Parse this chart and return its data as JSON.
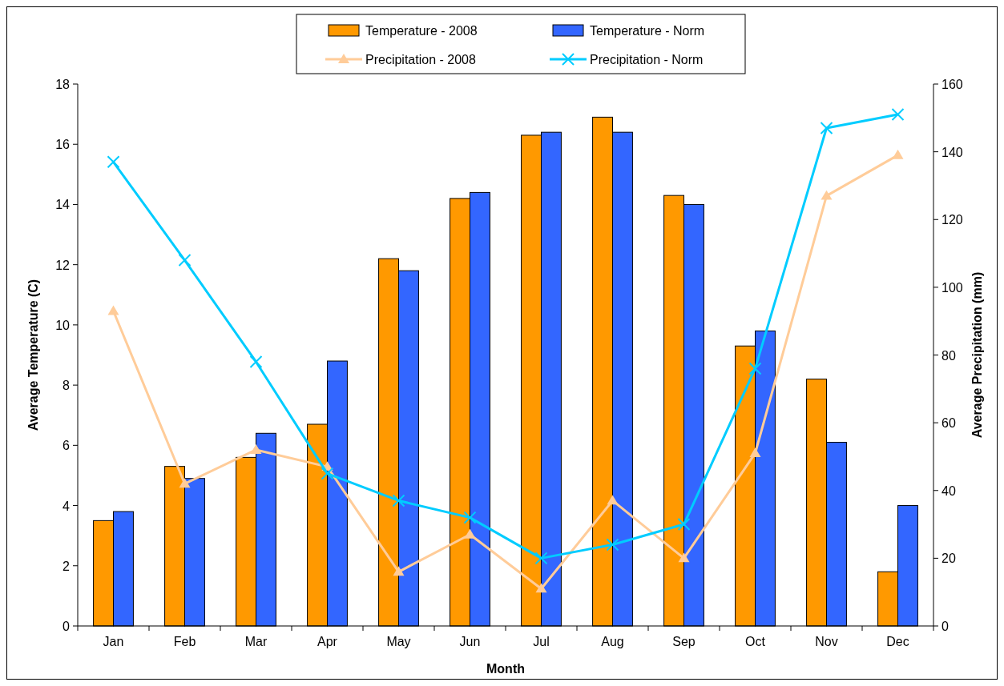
{
  "chart_data": {
    "type": "bar",
    "xlabel": "Month",
    "ylabel": "Average Temperature (C)",
    "y2label": "Average Precipitation (mm)",
    "categories": [
      "Jan",
      "Feb",
      "Mar",
      "Apr",
      "May",
      "Jun",
      "Jul",
      "Aug",
      "Sep",
      "Oct",
      "Nov",
      "Dec"
    ],
    "series": [
      {
        "name": "Temperature - 2008",
        "color": "#ff9900",
        "values": [
          3.5,
          5.3,
          5.6,
          6.7,
          12.2,
          14.2,
          16.3,
          16.9,
          14.3,
          9.3,
          8.2,
          1.8
        ]
      },
      {
        "name": "Temperature - Norm",
        "color": "#3366ff",
        "values": [
          3.8,
          4.9,
          6.4,
          8.8,
          11.8,
          14.4,
          16.4,
          16.4,
          14.0,
          9.8,
          6.1,
          4.0
        ]
      },
      {
        "name": "Precipitation - 2008",
        "type": "line",
        "axis": "y2",
        "marker": "triangle",
        "color": "#ffcc99",
        "values": [
          93,
          42,
          52,
          47,
          16,
          27,
          11,
          37,
          20,
          51,
          127,
          139
        ]
      },
      {
        "name": "Precipitation - Norm",
        "type": "line",
        "axis": "y2",
        "marker": "cross",
        "color": "#00ccff",
        "values": [
          137,
          108,
          78,
          45,
          37,
          32,
          20,
          24,
          30,
          76,
          147,
          151
        ]
      }
    ],
    "ylim": [
      0,
      18
    ],
    "yticks": [
      0,
      2,
      4,
      6,
      8,
      10,
      12,
      14,
      16,
      18
    ],
    "y2lim": [
      0,
      160
    ],
    "y2ticks": [
      0,
      20,
      40,
      60,
      80,
      100,
      120,
      140,
      160
    ],
    "grid": false,
    "legend": "top"
  }
}
